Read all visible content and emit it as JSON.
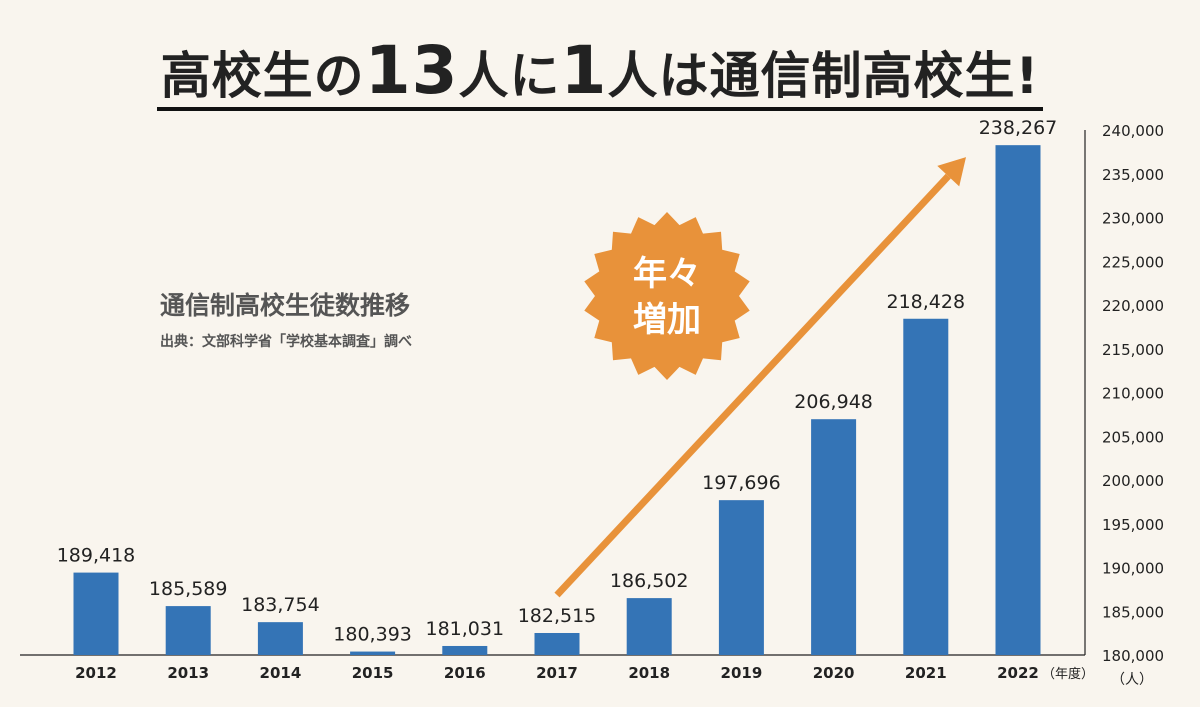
{
  "headline": {
    "part1": "高校生の",
    "num1": "13",
    "part2": "人に",
    "num2": "1",
    "part3": "人は通信制高校生!"
  },
  "subtitle": "通信制高校生徒数推移",
  "source": "出典：文部科学省「学校基本調査」調べ",
  "badge": {
    "line1": "年々",
    "line2": "増加",
    "color": "#e8923a"
  },
  "colors": {
    "bar": "#3474b6",
    "arrow": "#e8923a",
    "background": "#f9f5ee"
  },
  "chart_data": {
    "type": "bar",
    "categories": [
      "2012",
      "2013",
      "2014",
      "2015",
      "2016",
      "2017",
      "2018",
      "2019",
      "2020",
      "2021",
      "2022"
    ],
    "values": [
      189418,
      185589,
      183754,
      180393,
      181031,
      182515,
      186502,
      197696,
      206948,
      218428,
      238267
    ],
    "value_labels": [
      "189,418",
      "185,589",
      "183,754",
      "180,393",
      "181,031",
      "182,515",
      "186,502",
      "197,696",
      "206,948",
      "218,428",
      "238,267"
    ],
    "ylim": [
      180000,
      240000
    ],
    "yticks": [
      "180,000",
      "185,000",
      "190,000",
      "195,000",
      "200,000",
      "205,000",
      "210,000",
      "215,000",
      "220,000",
      "225,000",
      "230,000",
      "235,000",
      "240,000"
    ],
    "ytick_values": [
      180000,
      185000,
      190000,
      195000,
      200000,
      205000,
      210000,
      215000,
      220000,
      225000,
      230000,
      235000,
      240000
    ],
    "xlabel": "（年度）",
    "ylabel": "（人）",
    "y_axis_side": "right",
    "grid": false,
    "trend_arrow": {
      "from_category": "2017",
      "to_category": "2022"
    }
  }
}
